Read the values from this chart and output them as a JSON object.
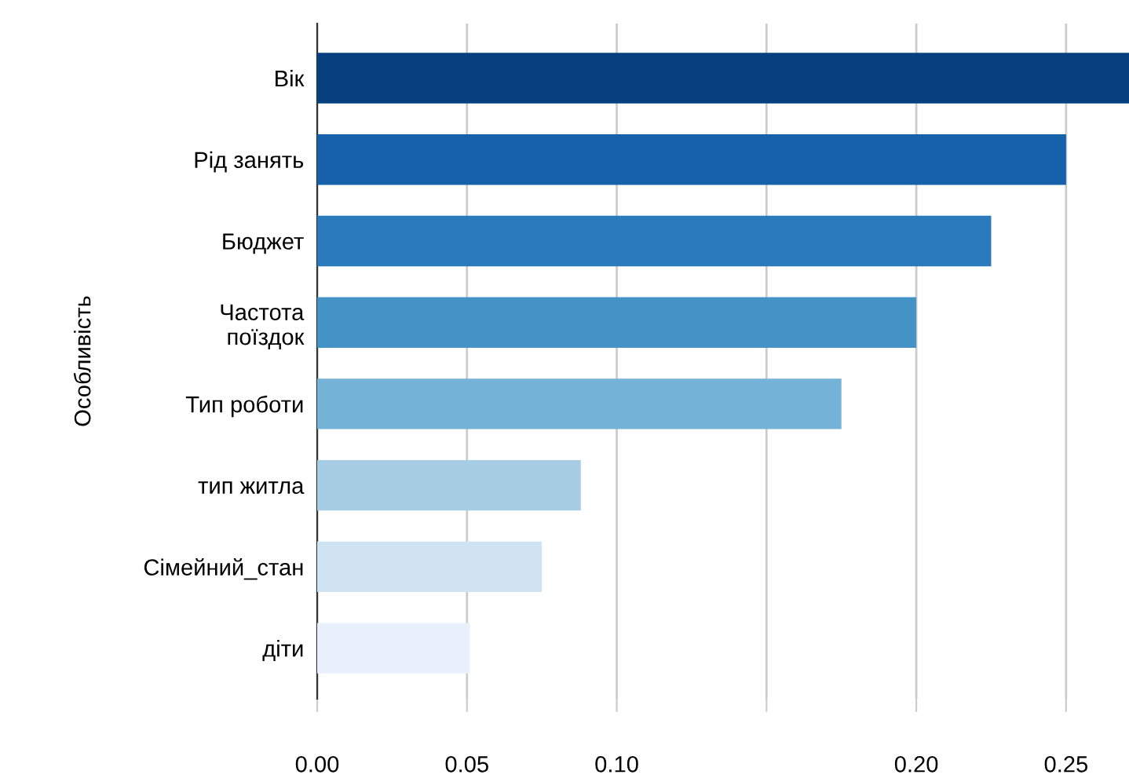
{
  "chart_data": {
    "type": "bar",
    "orientation": "horizontal",
    "ylabel": "Особливість",
    "categories": [
      "Вік",
      "Рід занять",
      "Бюджет",
      "Частота\nпоїздок",
      "Тип роботи",
      "тип житла",
      "Сімейний_стан",
      "діти"
    ],
    "values": [
      0.271,
      0.25,
      0.225,
      0.2,
      0.175,
      0.088,
      0.075,
      0.051
    ],
    "colors": [
      "#08407f",
      "#1661aa",
      "#2b7abc",
      "#4493c7",
      "#74b2d8",
      "#a6cde4",
      "#cfe3f3",
      "#e8f1fb"
    ],
    "xlim": [
      0,
      0.271
    ],
    "xticks": [
      {
        "value": 0,
        "label": "0.00"
      },
      {
        "value": 0.05,
        "label": "0.05"
      },
      {
        "value": 0.1,
        "label": "0.10"
      },
      {
        "value": 0.15,
        "label": null
      },
      {
        "value": 0.2,
        "label": "0.20"
      },
      {
        "value": 0.25,
        "label": "0.25"
      }
    ],
    "grid": "x",
    "legend": false
  }
}
